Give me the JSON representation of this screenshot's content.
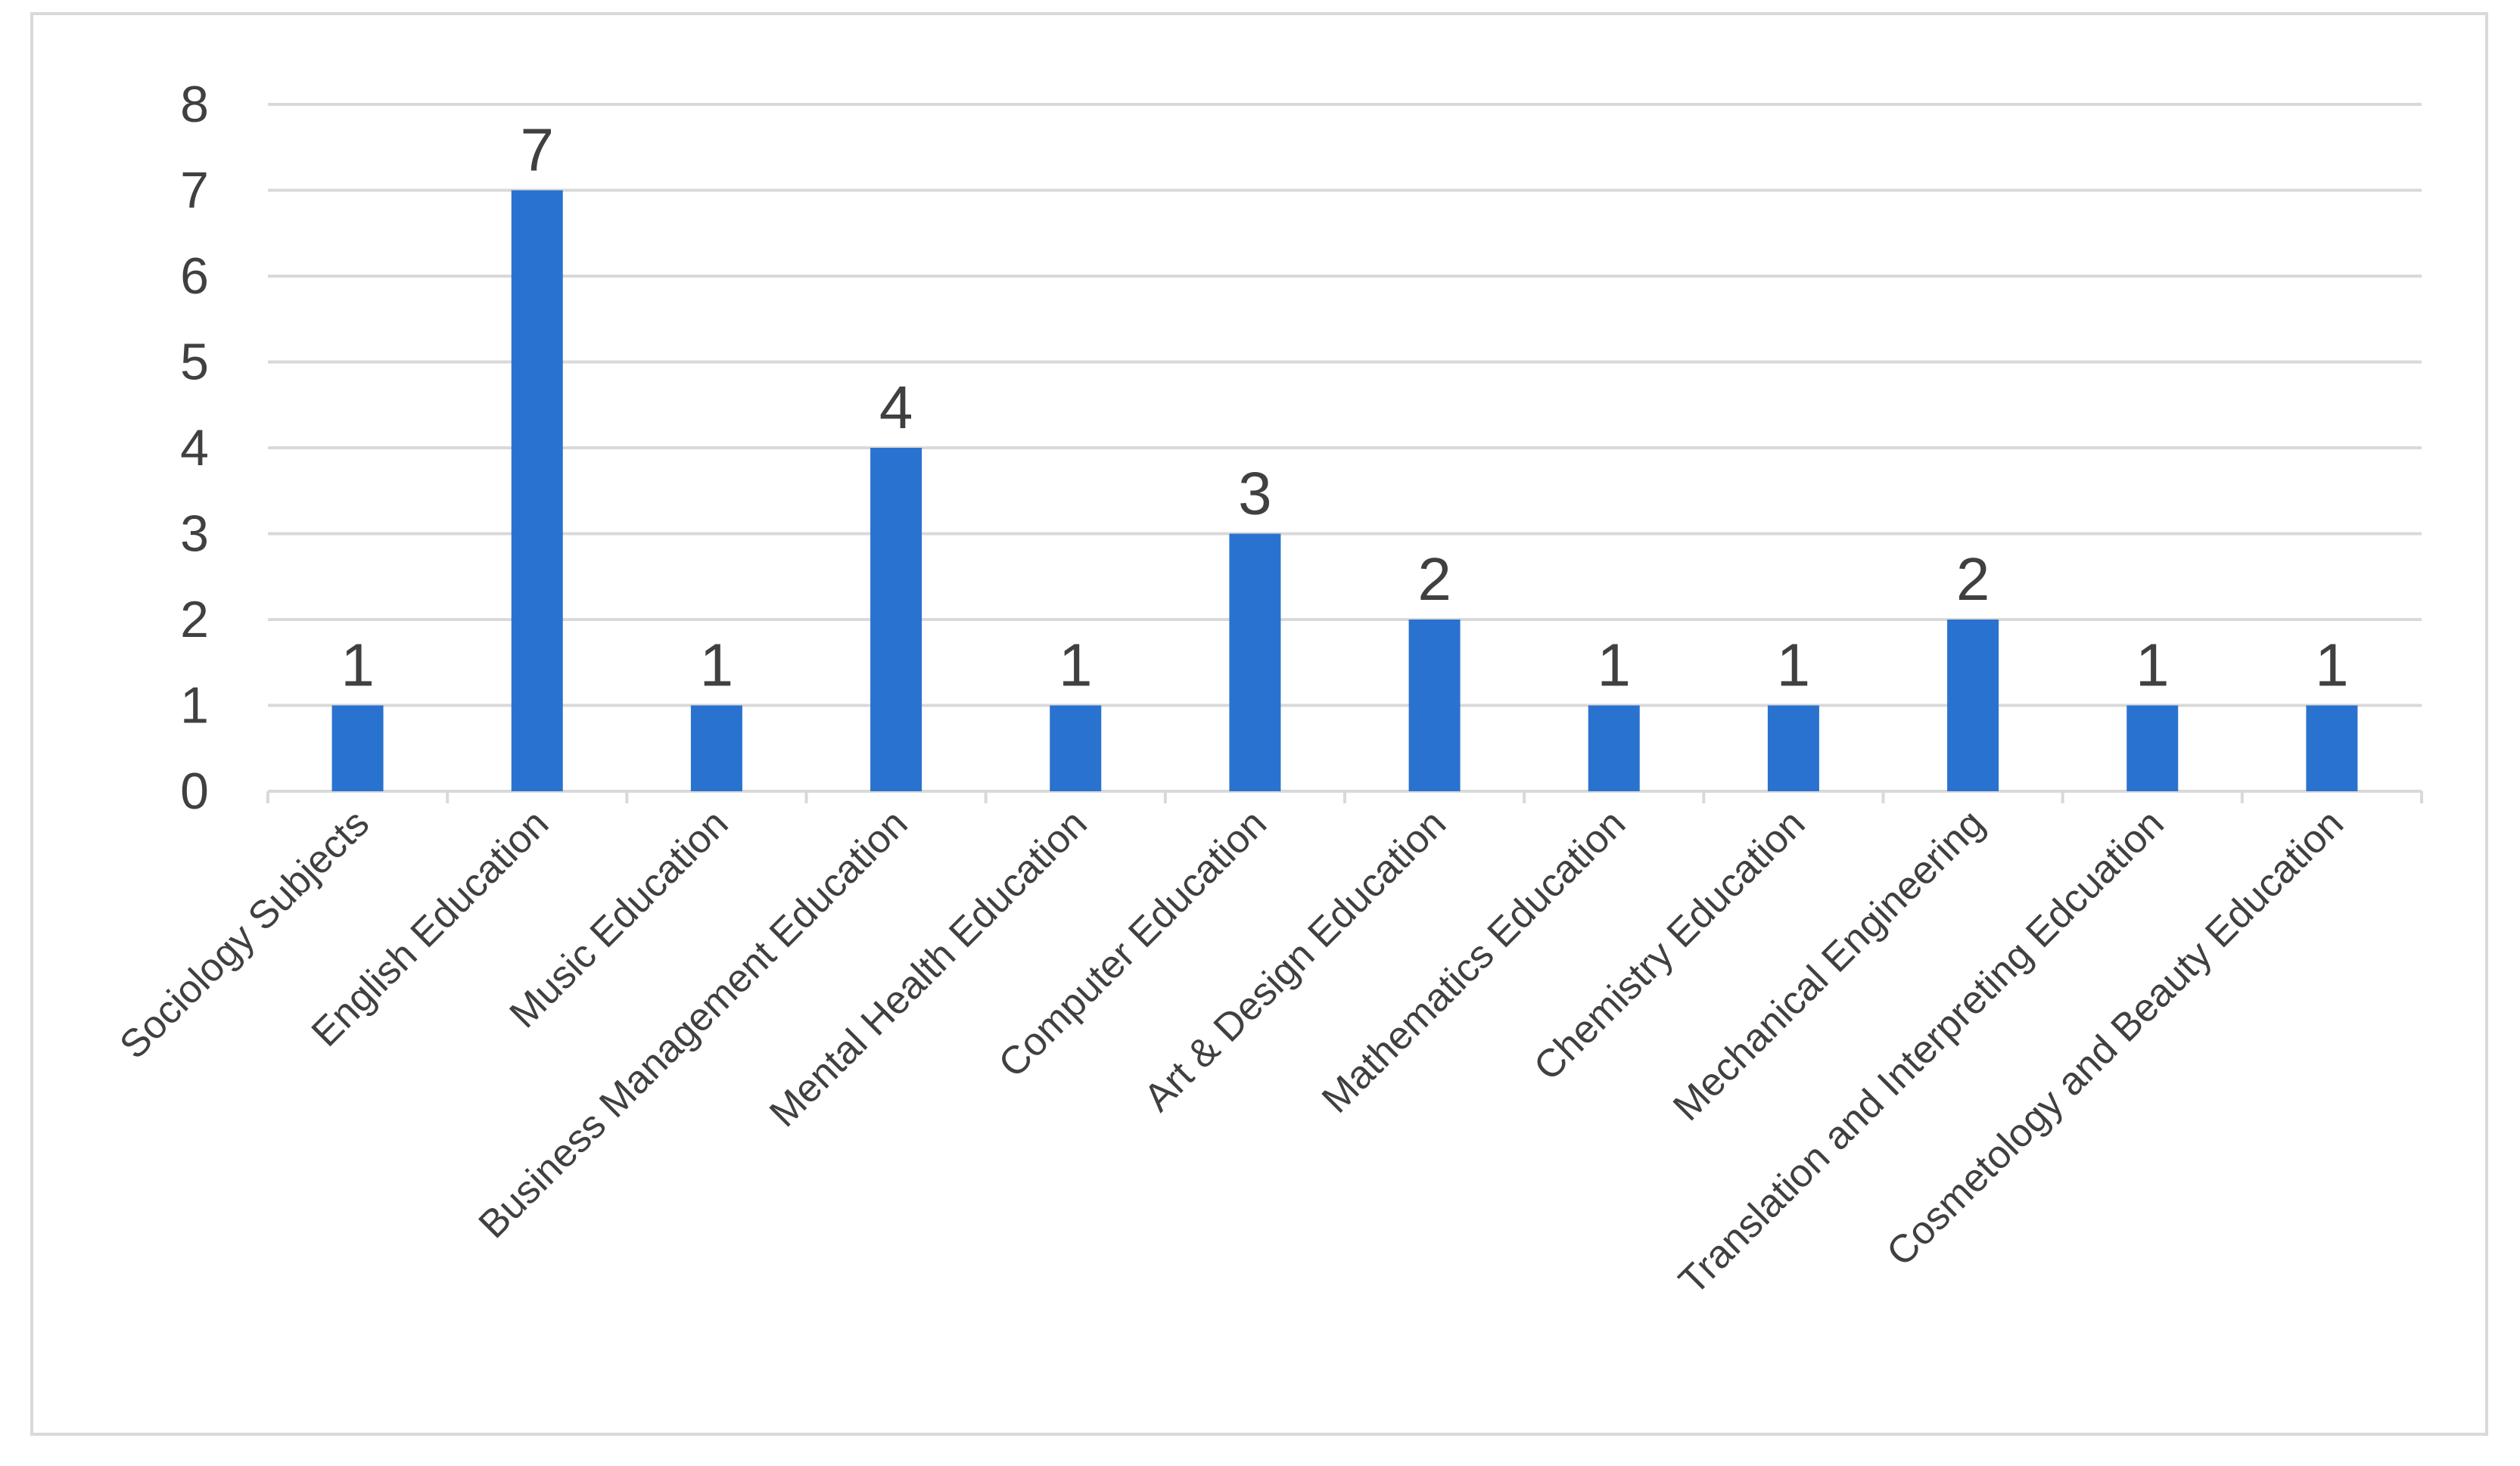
{
  "chart_data": {
    "type": "bar",
    "title": "",
    "xlabel": "",
    "ylabel": "",
    "categories": [
      "Sociology Subjects",
      "English Education",
      "Music Education",
      "Business Management Education",
      "Mental Health Education",
      "Computer Education",
      "Art & Design Education",
      "Mathematics Education",
      "Chemistry Education",
      "Mechanical Engineering",
      "Translation and Interpreting Edcuation",
      "Cosmetology and Beauty Education"
    ],
    "values": [
      1,
      7,
      1,
      4,
      1,
      3,
      2,
      1,
      1,
      2,
      1,
      1
    ],
    "data_labels": [
      "1",
      "7",
      "1",
      "4",
      "1",
      "3",
      "2",
      "1",
      "1",
      "2",
      "1",
      "1"
    ],
    "y_ticks": [
      "0",
      "1",
      "2",
      "3",
      "4",
      "5",
      "6",
      "7",
      "8"
    ],
    "ylim": [
      0,
      8
    ],
    "grid": true,
    "legend": "none",
    "colors": {
      "bar": "#2a72cf",
      "grid": "#d9d9d9",
      "axis": "#d9d9d9",
      "text": "#404040",
      "frame": "#d9d9d9"
    }
  }
}
